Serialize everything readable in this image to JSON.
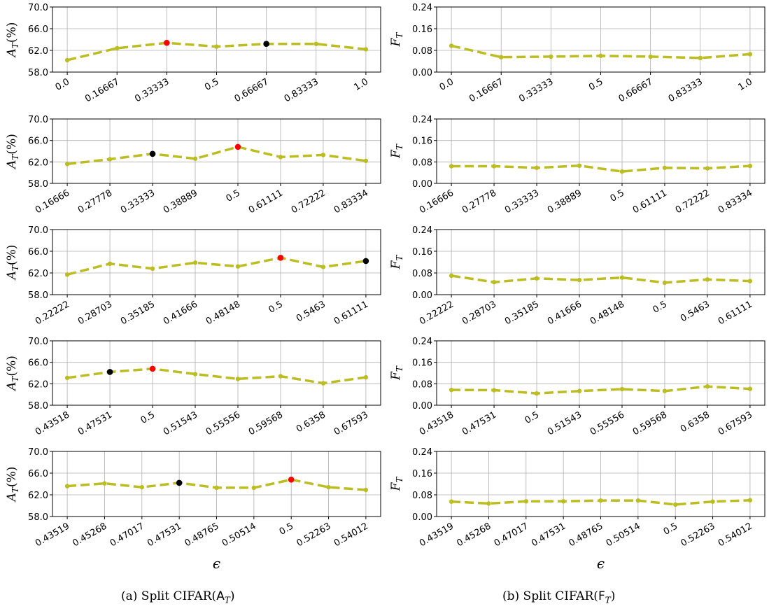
{
  "captions": {
    "left": "(a) Split CIFAR(A_T)",
    "right": "(b) Split CIFAR(F_T)"
  },
  "colors": {
    "line": "#bcbd22",
    "best": "#ff0000",
    "second": "#000000",
    "grid": "#b0b0b0"
  },
  "chart_data": [
    {
      "type": "line",
      "column": "left",
      "row": 0,
      "ylabel": "A_T(%)",
      "xlabel": "",
      "ylim": [
        58,
        70
      ],
      "yticks": [
        "58.0",
        "62.0",
        "66.0",
        "70.0"
      ],
      "categories": [
        "0.0",
        "0.16667",
        "0.33333",
        "0.5",
        "0.66667",
        "0.83333",
        "1.0"
      ],
      "values": [
        60.2,
        62.4,
        63.4,
        62.7,
        63.2,
        63.2,
        62.2
      ],
      "red_index": 2,
      "black_index": 4
    },
    {
      "type": "line",
      "column": "left",
      "row": 1,
      "ylabel": "A_T(%)",
      "xlabel": "",
      "ylim": [
        58,
        70
      ],
      "yticks": [
        "58.0",
        "62.0",
        "66.0",
        "70.0"
      ],
      "categories": [
        "0.16666",
        "0.27778",
        "0.33333",
        "0.38889",
        "0.5",
        "0.61111",
        "0.72222",
        "0.83334"
      ],
      "values": [
        61.6,
        62.5,
        63.5,
        62.6,
        64.8,
        62.9,
        63.3,
        62.2
      ],
      "red_index": 4,
      "black_index": 2
    },
    {
      "type": "line",
      "column": "left",
      "row": 2,
      "ylabel": "A_T(%)",
      "xlabel": "",
      "ylim": [
        58,
        70
      ],
      "yticks": [
        "58.0",
        "62.0",
        "66.0",
        "70.0"
      ],
      "categories": [
        "0.22222",
        "0.28703",
        "0.35185",
        "0.41666",
        "0.48148",
        "0.5",
        "0.5463",
        "0.61111"
      ],
      "values": [
        61.7,
        63.7,
        62.8,
        63.9,
        63.2,
        64.8,
        63.1,
        64.2
      ],
      "red_index": 5,
      "black_index": 7
    },
    {
      "type": "line",
      "column": "left",
      "row": 3,
      "ylabel": "A_T(%)",
      "xlabel": "",
      "ylim": [
        58,
        70
      ],
      "yticks": [
        "58.0",
        "62.0",
        "66.0",
        "70.0"
      ],
      "categories": [
        "0.43518",
        "0.47531",
        "0.5",
        "0.51543",
        "0.55556",
        "0.59568",
        "0.6358",
        "0.67593"
      ],
      "values": [
        63.1,
        64.2,
        64.8,
        63.8,
        62.9,
        63.4,
        62.1,
        63.2
      ],
      "red_index": 2,
      "black_index": 1
    },
    {
      "type": "line",
      "column": "left",
      "row": 4,
      "ylabel": "A_T(%)",
      "xlabel": "ϵ",
      "ylim": [
        58,
        70
      ],
      "yticks": [
        "58.0",
        "62.0",
        "66.0",
        "70.0"
      ],
      "categories": [
        "0.43519",
        "0.45268",
        "0.47017",
        "0.47531",
        "0.48765",
        "0.50514",
        "0.5",
        "0.52263",
        "0.54012"
      ],
      "values": [
        63.6,
        64.1,
        63.4,
        64.2,
        63.3,
        63.3,
        64.8,
        63.4,
        62.9
      ],
      "red_index": 6,
      "black_index": 3
    },
    {
      "type": "line",
      "column": "right",
      "row": 0,
      "ylabel": "F_T",
      "xlabel": "",
      "ylim": [
        0,
        0.24
      ],
      "yticks": [
        "0.00",
        "0.08",
        "0.16",
        "0.24"
      ],
      "categories": [
        "0.0",
        "0.16667",
        "0.33333",
        "0.5",
        "0.66667",
        "0.83333",
        "1.0"
      ],
      "values": [
        0.097,
        0.055,
        0.057,
        0.06,
        0.057,
        0.052,
        0.066
      ]
    },
    {
      "type": "line",
      "column": "right",
      "row": 1,
      "ylabel": "F_T",
      "xlabel": "",
      "ylim": [
        0,
        0.24
      ],
      "yticks": [
        "0.00",
        "0.08",
        "0.16",
        "0.24"
      ],
      "categories": [
        "0.16666",
        "0.27778",
        "0.33333",
        "0.38889",
        "0.5",
        "0.61111",
        "0.72222",
        "0.83334"
      ],
      "values": [
        0.064,
        0.064,
        0.058,
        0.066,
        0.044,
        0.058,
        0.056,
        0.065
      ]
    },
    {
      "type": "line",
      "column": "right",
      "row": 2,
      "ylabel": "F_T",
      "xlabel": "",
      "ylim": [
        0,
        0.24
      ],
      "yticks": [
        "0.00",
        "0.08",
        "0.16",
        "0.24"
      ],
      "categories": [
        "0.22222",
        "0.28703",
        "0.35185",
        "0.41666",
        "0.48148",
        "0.5",
        "0.5463",
        "0.61111"
      ],
      "values": [
        0.07,
        0.046,
        0.06,
        0.054,
        0.063,
        0.044,
        0.056,
        0.05
      ]
    },
    {
      "type": "line",
      "column": "right",
      "row": 3,
      "ylabel": "F_T",
      "xlabel": "",
      "ylim": [
        0,
        0.24
      ],
      "yticks": [
        "0.00",
        "0.08",
        "0.16",
        "0.24"
      ],
      "categories": [
        "0.43518",
        "0.47531",
        "0.5",
        "0.51543",
        "0.55556",
        "0.59568",
        "0.6358",
        "0.67593"
      ],
      "values": [
        0.057,
        0.056,
        0.044,
        0.053,
        0.06,
        0.053,
        0.07,
        0.061
      ]
    },
    {
      "type": "line",
      "column": "right",
      "row": 4,
      "ylabel": "F_T",
      "xlabel": "ϵ",
      "ylim": [
        0,
        0.24
      ],
      "yticks": [
        "0.00",
        "0.08",
        "0.16",
        "0.24"
      ],
      "categories": [
        "0.43519",
        "0.45268",
        "0.47017",
        "0.47531",
        "0.48765",
        "0.50514",
        "0.5",
        "0.52263",
        "0.54012"
      ],
      "values": [
        0.055,
        0.048,
        0.056,
        0.056,
        0.059,
        0.059,
        0.044,
        0.055,
        0.06
      ]
    }
  ]
}
